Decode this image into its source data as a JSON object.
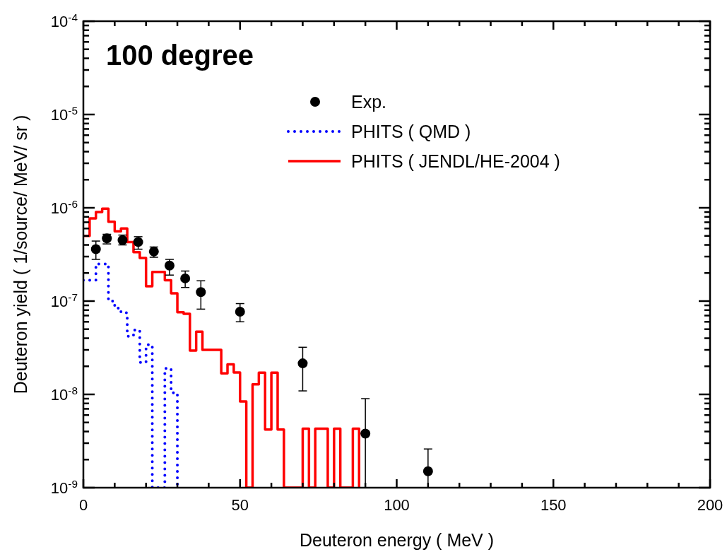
{
  "chart_data": {
    "type": "scatter",
    "title": "100 degree",
    "xlabel": "Deuteron energy ( MeV )",
    "ylabel": "Deuteron yield ( 1/source/ MeV/ sr )",
    "log": "y",
    "xlim": [
      0,
      200
    ],
    "ylim": [
      1e-09,
      0.0001
    ],
    "xticks": [
      0,
      {
        "value": 10,
        "label": null
      },
      {
        "value": 20,
        "label": null
      },
      {
        "value": 30,
        "label": null
      },
      {
        "value": 40,
        "label": null
      },
      50,
      {
        "value": 60,
        "label": null
      },
      {
        "value": 70,
        "label": null
      },
      {
        "value": 80,
        "label": null
      },
      {
        "value": 90,
        "label": null
      },
      100,
      {
        "value": 110,
        "label": null
      },
      {
        "value": 120,
        "label": null
      },
      {
        "value": 130,
        "label": null
      },
      {
        "value": 140,
        "label": null
      },
      150,
      {
        "value": 160,
        "label": null
      },
      {
        "value": 170,
        "label": null
      },
      {
        "value": 180,
        "label": null
      },
      {
        "value": 190,
        "label": null
      },
      200
    ],
    "yticks": [
      {
        "value": 1e-09,
        "label": "10$^{-9}$"
      },
      {
        "value": 2e-09,
        "label": null
      },
      {
        "value": 3e-09,
        "label": null
      },
      {
        "value": 4e-09,
        "label": null
      },
      {
        "value": 5e-09,
        "label": null
      },
      {
        "value": 6e-09,
        "label": null
      },
      {
        "value": 7e-09,
        "label": null
      },
      {
        "value": 8e-09,
        "label": null
      },
      {
        "value": 9e-09,
        "label": null
      },
      {
        "value": 1e-08,
        "label": "10$^{-8}$"
      },
      {
        "value": 2e-08,
        "label": null
      },
      {
        "value": 3e-08,
        "label": null
      },
      {
        "value": 4e-08,
        "label": null
      },
      {
        "value": 5e-08,
        "label": null
      },
      {
        "value": 6e-08,
        "label": null
      },
      {
        "value": 7e-08,
        "label": null
      },
      {
        "value": 8e-08,
        "label": null
      },
      {
        "value": 9e-08,
        "label": null
      },
      {
        "value": 1e-07,
        "label": "10$^{-7}$"
      },
      {
        "value": 2e-07,
        "label": null
      },
      {
        "value": 3e-07,
        "label": null
      },
      {
        "value": 4e-07,
        "label": null
      },
      {
        "value": 5e-07,
        "label": null
      },
      {
        "value": 6e-07,
        "label": null
      },
      {
        "value": 7e-07,
        "label": null
      },
      {
        "value": 8e-07,
        "label": null
      },
      {
        "value": 9e-07,
        "label": null
      },
      {
        "value": 1e-06,
        "label": "10$^{-6}$"
      },
      {
        "value": 2e-06,
        "label": null
      },
      {
        "value": 3e-06,
        "label": null
      },
      {
        "value": 4e-06,
        "label": null
      },
      {
        "value": 5e-06,
        "label": null
      },
      {
        "value": 6e-06,
        "label": null
      },
      {
        "value": 7e-06,
        "label": null
      },
      {
        "value": 8e-06,
        "label": null
      },
      {
        "value": 9e-06,
        "label": null
      },
      {
        "value": 1e-05,
        "label": "10$^{-5}$"
      },
      {
        "value": 2e-05,
        "label": null
      },
      {
        "value": 3e-05,
        "label": null
      },
      {
        "value": 4e-05,
        "label": null
      },
      {
        "value": 5e-05,
        "label": null
      },
      {
        "value": 6e-05,
        "label": null
      },
      {
        "value": 7e-05,
        "label": null
      },
      {
        "value": 8e-05,
        "label": null
      },
      {
        "value": 9e-05,
        "label": null
      },
      {
        "value": 0.0001,
        "label": "10$^{-4}$"
      }
    ],
    "legend": "top",
    "grid": false,
    "series": [
      {
        "name": "Exp.",
        "color": "#000000",
        "marker": "circle",
        "x": [
          4,
          7.5,
          12.5,
          17.5,
          22.5,
          27.5,
          32.5,
          37.5,
          50,
          70,
          90,
          110
        ],
        "values": [
          3.6e-07,
          4.7e-07,
          4.5e-07,
          4.3e-07,
          3.4e-07,
          2.4e-07,
          1.75e-07,
          1.25e-07,
          7.7e-08,
          2.15e-08,
          3.8e-09,
          1.5e-09
        ],
        "errors": [
          [
            2.8e-07,
            4.4e-07
          ],
          [
            4.1e-07,
            5.2e-07
          ],
          [
            4e-07,
            5.1e-07
          ],
          [
            3.6e-07,
            4.9e-07
          ],
          [
            2.95e-07,
            3.8e-07
          ],
          [
            1.9e-07,
            2.8e-07
          ],
          [
            1.4e-07,
            2.1e-07
          ],
          [
            8.2e-08,
            1.65e-07
          ],
          [
            6e-08,
            9.4e-08
          ],
          [
            1.09e-08,
            3.2e-08
          ],
          [
            1e-09,
            9e-09
          ],
          [
            1e-09,
            2.6e-09
          ]
        ]
      },
      {
        "name": "PHITS ( QMD )",
        "type": "step",
        "color": "#0000ff",
        "line_style": "dotted",
        "marker": "none",
        "x": [
          0,
          2,
          4,
          6,
          8,
          10,
          12,
          14,
          16,
          18,
          20,
          22,
          24,
          26,
          28,
          30
        ],
        "values": [
          1.67e-07,
          1.67e-07,
          2.5e-07,
          2.5e-07,
          1e-07,
          8.4e-08,
          7.5e-08,
          4.2e-08,
          4.9e-08,
          2.2e-08,
          3.4e-08,
          1e-09,
          1e-09,
          1.9e-08,
          1.04e-08,
          1e-09
        ]
      },
      {
        "name": "PHITS ( JENDL/HE-2004 )",
        "type": "step",
        "color": "#ff0000",
        "line_style": "solid",
        "marker": "none",
        "x": [
          0,
          2,
          4,
          6,
          8,
          10,
          12,
          14,
          16,
          18,
          20,
          22,
          24,
          26,
          28,
          30,
          32,
          34,
          36,
          38,
          40,
          42,
          44,
          46,
          48,
          50,
          52,
          54,
          56,
          58,
          60,
          62,
          64,
          66,
          68,
          70,
          72,
          74,
          76,
          78,
          80,
          82,
          84,
          86,
          88
        ],
        "values": [
          5e-07,
          7.7e-07,
          9e-07,
          9.8e-07,
          7.1e-07,
          5.6e-07,
          6e-07,
          4.3e-07,
          3.35e-07,
          2.9e-07,
          1.44e-07,
          2.05e-07,
          2.05e-07,
          1.67e-07,
          1.21e-07,
          7.6e-08,
          7.3e-08,
          2.95e-08,
          4.7e-08,
          3e-08,
          3e-08,
          3e-08,
          1.68e-08,
          2.1e-08,
          1.72e-08,
          8.4e-09,
          1e-09,
          1.28e-08,
          1.71e-08,
          4.2e-09,
          1.71e-08,
          4.2e-09,
          1e-09,
          1e-09,
          1e-09,
          4.3e-09,
          1e-09,
          4.3e-09,
          4.3e-09,
          1e-09,
          4.3e-09,
          1e-09,
          1e-09,
          4.3e-09,
          1e-09
        ]
      }
    ]
  }
}
